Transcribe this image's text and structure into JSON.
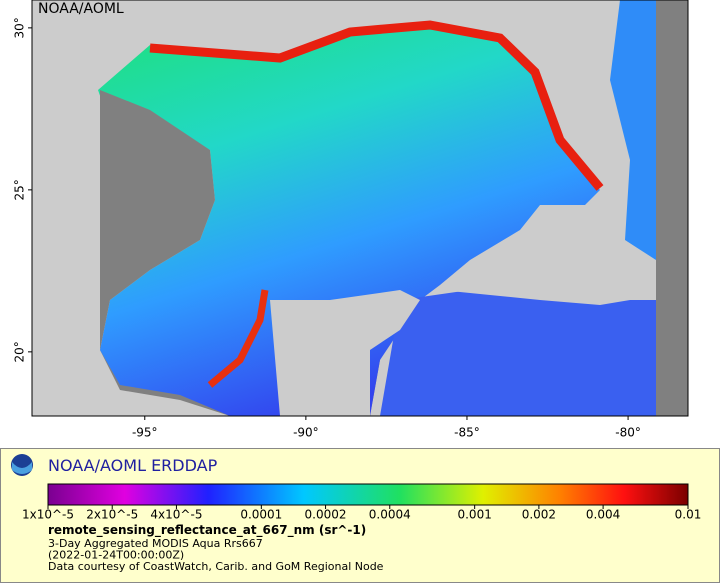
{
  "map": {
    "watermark": "NOAA/AOML",
    "xlim": [
      -98.5,
      -78.14
    ],
    "ylim": [
      18.02,
      30.86
    ],
    "lat_ticks": [
      {
        "value": 30,
        "label": "30°"
      },
      {
        "value": 25,
        "label": "25°"
      },
      {
        "value": 20,
        "label": "20°"
      }
    ],
    "lon_ticks": [
      {
        "value": -95,
        "label": "-95°"
      },
      {
        "value": -90,
        "label": "-90°"
      },
      {
        "value": -85,
        "label": "-85°"
      },
      {
        "value": -80,
        "label": "-80°"
      }
    ]
  },
  "legend": {
    "title": "NOAA/AOML ERDDAP",
    "colorbar": {
      "log_scale": true,
      "lim": [
        1e-05,
        0.01
      ],
      "ticks": [
        {
          "value": 1e-05,
          "label": "1x10^-5"
        },
        {
          "value": 2e-05,
          "label": "2x10^-5"
        },
        {
          "value": 4e-05,
          "label": "4x10^-5"
        },
        0.0001,
        0.0002,
        0.0004,
        0.001,
        0.002,
        0.004,
        0.01
      ]
    },
    "variable": "remote_sensing_reflectance_at_667_nm (sr^-1)",
    "lines": [
      "3-Day Aggregated MODIS Aqua Rrs667",
      "(2022-01-24T00:00:00Z)",
      "Data courtesy of CoastWatch, Carib. and GoM Regional Node"
    ]
  }
}
